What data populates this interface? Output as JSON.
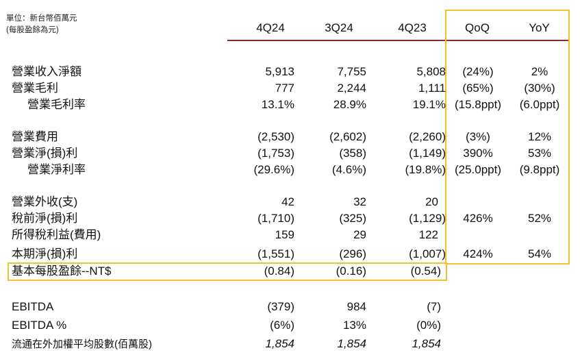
{
  "unit_note": {
    "line1": "單位：新台幣佰萬元",
    "line2": "(每股盈餘為元)"
  },
  "columns": [
    "4Q24",
    "3Q24",
    "4Q23",
    "QoQ",
    "YoY"
  ],
  "rows": [
    {
      "label": "營業收入淨額",
      "v": [
        "5,913",
        "7,755",
        "5,808"
      ],
      "qoq": "(24%)",
      "yoy": "2%"
    },
    {
      "label": "營業毛利",
      "v": [
        "777",
        "2,244",
        "1,111"
      ],
      "qoq": "(65%)",
      "yoy": "(30%)"
    },
    {
      "label": "營業毛利率",
      "v": [
        "13.1%",
        "28.9%",
        "19.1%"
      ],
      "qoq": "(15.8ppt)",
      "yoy": "(6.0ppt)"
    },
    {
      "label": "營業費用",
      "v": [
        "(2,530)",
        "(2,602)",
        "(2,260)"
      ],
      "qoq": "(3%)",
      "yoy": "12%"
    },
    {
      "label": "營業淨(損)利",
      "v": [
        "(1,753)",
        "(358)",
        "(1,149)"
      ],
      "qoq": "390%",
      "yoy": "53%"
    },
    {
      "label": "營業淨利率",
      "v": [
        "(29.6%)",
        "(4.6%)",
        "(19.8%)"
      ],
      "qoq": "(25.0ppt)",
      "yoy": "(9.8ppt)"
    },
    {
      "label": "營業外收(支)",
      "v": [
        "42",
        "32",
        "20"
      ],
      "qoq": "",
      "yoy": ""
    },
    {
      "label": "稅前淨(損)利",
      "v": [
        "(1,710)",
        "(325)",
        "(1,129)"
      ],
      "qoq": "426%",
      "yoy": "52%"
    },
    {
      "label": "所得稅利益(費用)",
      "v": [
        "159",
        "29",
        "122"
      ],
      "qoq": "",
      "yoy": ""
    },
    {
      "label": "本期淨(損)利",
      "v": [
        "(1,551)",
        "(296)",
        "(1,007)"
      ],
      "qoq": "424%",
      "yoy": "54%"
    },
    {
      "label": "基本每股盈餘--NT$",
      "v": [
        "(0.84)",
        "(0.16)",
        "(0.54)"
      ],
      "qoq": "",
      "yoy": ""
    },
    {
      "label": "EBITDA",
      "v": [
        "(379)",
        "984",
        "(7)"
      ],
      "qoq": "",
      "yoy": ""
    },
    {
      "label": "EBITDA %",
      "v": [
        "(6%)",
        "13%",
        "(0%)"
      ],
      "qoq": "",
      "yoy": ""
    },
    {
      "label": "流通在外加權平均股數(佰萬股)",
      "v": [
        "1,854",
        "1,854",
        "1,854"
      ],
      "qoq": "",
      "yoy": ""
    }
  ],
  "colors": {
    "header_rule": "#8a2b2b",
    "highlight_box": "#f2c12e"
  }
}
